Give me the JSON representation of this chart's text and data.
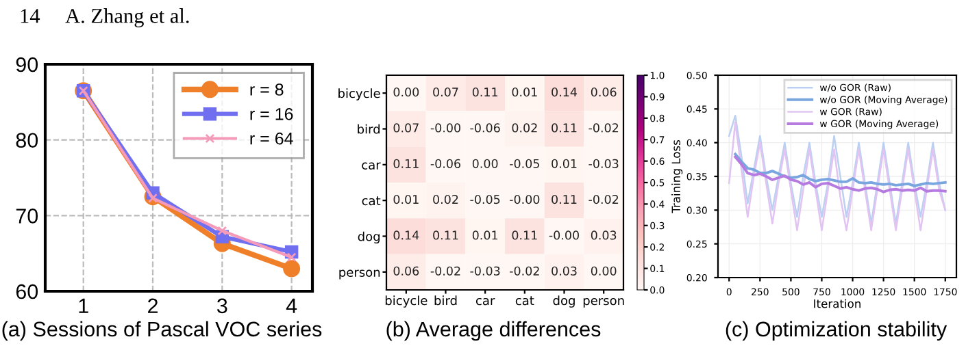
{
  "chart_data": [
    {
      "type": "line",
      "categories": [
        "1",
        "2",
        "3",
        "4"
      ],
      "ylim": [
        60,
        90
      ],
      "yticks": [
        60,
        70,
        80,
        90
      ],
      "grid": true,
      "line_style": "solid",
      "legend": "top right",
      "series": [
        {
          "name": "r = 8",
          "color": "#f07f2a",
          "marker": "circle",
          "values": [
            86.5,
            72.5,
            66.3,
            63.0
          ]
        },
        {
          "name": "r = 16",
          "color": "#6f6ff0",
          "marker": "square",
          "values": [
            86.5,
            73.0,
            67.2,
            65.2
          ]
        },
        {
          "name": "r = 64",
          "color": "#f59ab8",
          "marker": "cross",
          "values": [
            86.5,
            72.3,
            68.0,
            64.5
          ]
        }
      ],
      "annotations": [
        "(a) Sessions of Pascal VOC series",
        "14     A. Zhang et al."
      ]
    },
    {
      "type": "heatmap",
      "categories": [
        "bicycle",
        "bird",
        "car",
        "cat",
        "dog",
        "person"
      ],
      "y_categories": [
        "bicycle",
        "bird",
        "car",
        "cat",
        "dog",
        "person"
      ],
      "cells": [
        [
          0.0,
          0.07,
          0.11,
          0.01,
          0.14,
          0.06
        ],
        [
          0.07,
          -0.0,
          -0.06,
          0.02,
          0.11,
          -0.02
        ],
        [
          0.11,
          -0.06,
          0.0,
          -0.05,
          0.01,
          -0.03
        ],
        [
          0.01,
          0.02,
          -0.05,
          -0.0,
          0.11,
          -0.02
        ],
        [
          0.14,
          0.11,
          0.01,
          0.11,
          -0.0,
          0.03
        ],
        [
          0.06,
          -0.02,
          -0.03,
          -0.02,
          0.03,
          0.0
        ]
      ],
      "cell_labels": [
        [
          "0.00",
          "0.07",
          "0.11",
          "0.01",
          "0.14",
          "0.06"
        ],
        [
          "0.07",
          "-0.00",
          "-0.06",
          "0.02",
          "0.11",
          "-0.02"
        ],
        [
          "0.11",
          "-0.06",
          "0.00",
          "-0.05",
          "0.01",
          "-0.03"
        ],
        [
          "0.01",
          "0.02",
          "-0.05",
          "-0.00",
          "0.11",
          "-0.02"
        ],
        [
          "0.14",
          "0.11",
          "0.01",
          "0.11",
          "-0.00",
          "0.03"
        ],
        [
          "0.06",
          "-0.02",
          "-0.03",
          "-0.02",
          "0.03",
          "0.00"
        ]
      ],
      "data_labels": true,
      "clim": [
        0.0,
        1.0
      ],
      "cticks": [
        {
          "value": 0.0,
          "label": "0.0"
        },
        {
          "value": 0.1,
          "label": "0.1"
        },
        {
          "value": 0.2,
          "label": "0.2"
        },
        {
          "value": 0.3,
          "label": "0.3"
        },
        {
          "value": 0.4,
          "label": "0.4"
        },
        {
          "value": 0.5,
          "label": "0.5"
        },
        {
          "value": 0.6,
          "label": "0.6"
        },
        {
          "value": 0.7,
          "label": "0.7"
        },
        {
          "value": 0.8,
          "label": "0.8"
        },
        {
          "value": 0.9,
          "label": "0.9"
        },
        {
          "value": 1.0,
          "label": "1.0"
        }
      ],
      "annotations": [
        "(b) Average differences"
      ]
    },
    {
      "type": "line",
      "xlabel": "Iteration",
      "ylabel": "Training Loss",
      "xlim": [
        -90,
        1840
      ],
      "ylim": [
        0.2,
        0.5
      ],
      "xticks": [
        0,
        250,
        500,
        750,
        1000,
        1250,
        1500,
        1750
      ],
      "yticks": [
        {
          "value": 0.2,
          "label": "0.20"
        },
        {
          "value": 0.25,
          "label": "0.25"
        },
        {
          "value": 0.3,
          "label": "0.30"
        },
        {
          "value": 0.35,
          "label": "0.35"
        },
        {
          "value": 0.4,
          "label": "0.40"
        },
        {
          "value": 0.45,
          "label": "0.45"
        },
        {
          "value": 0.5,
          "label": "0.50"
        }
      ],
      "grid": true,
      "legend": "top right",
      "marker": "none",
      "series": [
        {
          "name": "w/o GOR (Raw)",
          "color": "#bcd0f2",
          "x": [
            0,
            50,
            100,
            150,
            200,
            250,
            300,
            350,
            400,
            450,
            500,
            550,
            600,
            650,
            700,
            750,
            800,
            850,
            900,
            950,
            1000,
            1050,
            1100,
            1150,
            1200,
            1250,
            1300,
            1350,
            1400,
            1450,
            1500,
            1550,
            1600,
            1650,
            1700,
            1750
          ],
          "values": [
            0.41,
            0.44,
            0.38,
            0.31,
            0.36,
            0.41,
            0.35,
            0.3,
            0.35,
            0.4,
            0.34,
            0.29,
            0.35,
            0.4,
            0.34,
            0.29,
            0.34,
            0.41,
            0.35,
            0.29,
            0.34,
            0.4,
            0.34,
            0.28,
            0.34,
            0.4,
            0.34,
            0.28,
            0.34,
            0.4,
            0.34,
            0.29,
            0.34,
            0.4,
            0.34,
            0.3
          ]
        },
        {
          "name": "w/o GOR (Moving Average)",
          "color": "#7aa6e0",
          "x": [
            50,
            100,
            150,
            200,
            250,
            300,
            350,
            400,
            450,
            500,
            550,
            600,
            650,
            700,
            750,
            800,
            850,
            900,
            950,
            1000,
            1050,
            1100,
            1150,
            1200,
            1250,
            1300,
            1350,
            1400,
            1450,
            1500,
            1550,
            1600,
            1650,
            1700,
            1750
          ],
          "values": [
            0.383,
            0.372,
            0.362,
            0.36,
            0.355,
            0.355,
            0.358,
            0.354,
            0.35,
            0.348,
            0.349,
            0.352,
            0.346,
            0.343,
            0.345,
            0.346,
            0.344,
            0.342,
            0.342,
            0.347,
            0.341,
            0.34,
            0.341,
            0.339,
            0.338,
            0.339,
            0.337,
            0.338,
            0.339,
            0.336,
            0.338,
            0.34,
            0.339,
            0.34,
            0.341
          ]
        },
        {
          "name": "w GOR (Raw)",
          "color": "#e2c4f2",
          "x": [
            0,
            50,
            100,
            150,
            200,
            250,
            300,
            350,
            400,
            450,
            500,
            550,
            600,
            650,
            700,
            750,
            800,
            850,
            900,
            950,
            1000,
            1050,
            1100,
            1150,
            1200,
            1250,
            1300,
            1350,
            1400,
            1450,
            1500,
            1550,
            1600,
            1650,
            1700,
            1750
          ],
          "values": [
            0.34,
            0.43,
            0.36,
            0.29,
            0.35,
            0.4,
            0.34,
            0.28,
            0.34,
            0.39,
            0.33,
            0.27,
            0.33,
            0.39,
            0.33,
            0.27,
            0.33,
            0.39,
            0.32,
            0.27,
            0.33,
            0.39,
            0.33,
            0.27,
            0.33,
            0.39,
            0.33,
            0.27,
            0.33,
            0.39,
            0.33,
            0.27,
            0.33,
            0.39,
            0.33,
            0.3
          ]
        },
        {
          "name": "w GOR (Moving Average)",
          "color": "#b57be0",
          "x": [
            50,
            100,
            150,
            200,
            250,
            300,
            350,
            400,
            450,
            500,
            550,
            600,
            650,
            700,
            750,
            800,
            850,
            900,
            950,
            1000,
            1050,
            1100,
            1150,
            1200,
            1250,
            1300,
            1350,
            1400,
            1450,
            1500,
            1550,
            1600,
            1650,
            1700,
            1750
          ],
          "values": [
            0.379,
            0.368,
            0.355,
            0.352,
            0.354,
            0.35,
            0.345,
            0.348,
            0.351,
            0.345,
            0.343,
            0.338,
            0.341,
            0.334,
            0.339,
            0.34,
            0.336,
            0.332,
            0.334,
            0.331,
            0.329,
            0.332,
            0.333,
            0.331,
            0.327,
            0.33,
            0.331,
            0.329,
            0.33,
            0.329,
            0.333,
            0.328,
            0.329,
            0.329,
            0.328
          ]
        }
      ],
      "annotations": [
        "(c) Optimization stability"
      ]
    }
  ]
}
